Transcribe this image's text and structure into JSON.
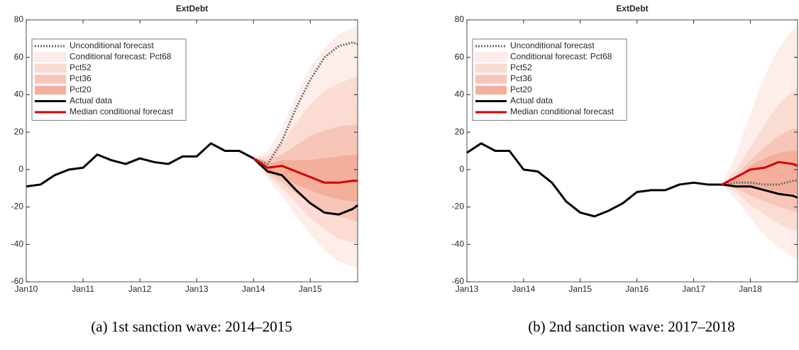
{
  "chart_data": [
    {
      "type": "line",
      "title": "ExtDebt",
      "caption": "(a) 1st sanction wave: 2014–2015",
      "x": [
        "2010-01",
        "2010-04",
        "2010-07",
        "2010-10",
        "2011-01",
        "2011-04",
        "2011-07",
        "2011-10",
        "2012-01",
        "2012-04",
        "2012-07",
        "2012-10",
        "2013-01",
        "2013-04",
        "2013-07",
        "2013-10",
        "2014-01",
        "2014-04",
        "2014-07",
        "2014-10",
        "2015-01",
        "2015-04",
        "2015-07",
        "2015-10",
        "2015-11"
      ],
      "xlim": [
        "2010-01",
        "2015-11"
      ],
      "xticks": [
        {
          "value": "2010-01",
          "label": "Jan10"
        },
        {
          "value": "2011-01",
          "label": "Jan11"
        },
        {
          "value": "2012-01",
          "label": "Jan12"
        },
        {
          "value": "2013-01",
          "label": "Jan13"
        },
        {
          "value": "2014-01",
          "label": "Jan14"
        },
        {
          "value": "2015-01",
          "label": "Jan15"
        }
      ],
      "ylim": [
        -60,
        80
      ],
      "yticks": [
        -60,
        -40,
        -20,
        0,
        20,
        40,
        60,
        80
      ],
      "legend": "upper-left",
      "series": [
        {
          "name": "Unconditional forecast",
          "color": "#6e6e6e",
          "style": "dotted",
          "values": [
            null,
            null,
            null,
            null,
            null,
            null,
            null,
            null,
            null,
            null,
            null,
            null,
            null,
            null,
            null,
            null,
            6,
            3,
            15,
            33,
            48,
            60,
            66,
            68,
            67
          ]
        },
        {
          "name": "Conditional forecast: Pct68",
          "color": "#fdeeea",
          "lower": [
            null,
            null,
            null,
            null,
            null,
            null,
            null,
            null,
            null,
            null,
            null,
            null,
            null,
            null,
            null,
            null,
            6,
            -5,
            -14,
            -25,
            -35,
            -43,
            -49,
            -52,
            -52
          ],
          "upper": [
            null,
            null,
            null,
            null,
            null,
            null,
            null,
            null,
            null,
            null,
            null,
            null,
            null,
            null,
            null,
            null,
            6,
            10,
            22,
            40,
            55,
            65,
            72,
            76,
            77
          ]
        },
        {
          "name": "Pct52",
          "color": "#fbdcd3",
          "lower": [
            null,
            null,
            null,
            null,
            null,
            null,
            null,
            null,
            null,
            null,
            null,
            null,
            null,
            null,
            null,
            null,
            6,
            -3,
            -10,
            -18,
            -26,
            -32,
            -37,
            -39,
            -40
          ],
          "upper": [
            null,
            null,
            null,
            null,
            null,
            null,
            null,
            null,
            null,
            null,
            null,
            null,
            null,
            null,
            null,
            null,
            6,
            7,
            14,
            25,
            35,
            42,
            46,
            49,
            50
          ]
        },
        {
          "name": "Pct36",
          "color": "#f8c6b9",
          "lower": [
            null,
            null,
            null,
            null,
            null,
            null,
            null,
            null,
            null,
            null,
            null,
            null,
            null,
            null,
            null,
            null,
            6,
            -2,
            -7,
            -13,
            -18,
            -22,
            -25,
            -27,
            -28
          ],
          "upper": [
            null,
            null,
            null,
            null,
            null,
            null,
            null,
            null,
            null,
            null,
            null,
            null,
            null,
            null,
            null,
            null,
            6,
            5,
            8,
            13,
            18,
            21,
            23,
            24,
            24
          ]
        },
        {
          "name": "Pct20",
          "color": "#f4ae9c",
          "lower": [
            null,
            null,
            null,
            null,
            null,
            null,
            null,
            null,
            null,
            null,
            null,
            null,
            null,
            null,
            null,
            null,
            6,
            -1,
            -4,
            -8,
            -11,
            -14,
            -16,
            -17,
            -17
          ],
          "upper": [
            null,
            null,
            null,
            null,
            null,
            null,
            null,
            null,
            null,
            null,
            null,
            null,
            null,
            null,
            null,
            null,
            6,
            3,
            5,
            5,
            5,
            6,
            7,
            8,
            8
          ]
        },
        {
          "name": "Actual data",
          "color": "#000000",
          "style": "solid",
          "values": [
            -9,
            -8,
            -3,
            0,
            1,
            8,
            5,
            3,
            6,
            4,
            3,
            7,
            7,
            14,
            10,
            10,
            6,
            -1,
            -3,
            -11,
            -18,
            -23,
            -24,
            -21,
            -19
          ]
        },
        {
          "name": "Median conditional forecast",
          "color": "#d40000",
          "style": "solid",
          "values": [
            null,
            null,
            null,
            null,
            null,
            null,
            null,
            null,
            null,
            null,
            null,
            null,
            null,
            null,
            null,
            null,
            6,
            1,
            2,
            -1,
            -4,
            -7,
            -7,
            -6,
            -6
          ]
        }
      ]
    },
    {
      "type": "line",
      "title": "ExtDebt",
      "caption": "(b) 2nd sanction wave: 2017–2018",
      "x": [
        "2013-01",
        "2013-04",
        "2013-07",
        "2013-10",
        "2014-01",
        "2014-04",
        "2014-07",
        "2014-10",
        "2015-01",
        "2015-04",
        "2015-07",
        "2015-10",
        "2016-01",
        "2016-04",
        "2016-07",
        "2016-10",
        "2017-01",
        "2017-04",
        "2017-07",
        "2017-10",
        "2018-01",
        "2018-04",
        "2018-07",
        "2018-10",
        "2018-11"
      ],
      "xlim": [
        "2013-01",
        "2018-11"
      ],
      "xticks": [
        {
          "value": "2013-01",
          "label": "Jan13"
        },
        {
          "value": "2014-01",
          "label": "Jan14"
        },
        {
          "value": "2015-01",
          "label": "Jan15"
        },
        {
          "value": "2016-01",
          "label": "Jan16"
        },
        {
          "value": "2017-01",
          "label": "Jan17"
        },
        {
          "value": "2018-01",
          "label": "Jan18"
        }
      ],
      "ylim": [
        -60,
        80
      ],
      "yticks": [
        -60,
        -40,
        -20,
        0,
        20,
        40,
        60,
        80
      ],
      "legend": "upper-left",
      "series": [
        {
          "name": "Unconditional forecast",
          "color": "#6e6e6e",
          "style": "dotted",
          "values": [
            null,
            null,
            null,
            null,
            null,
            null,
            null,
            null,
            null,
            null,
            null,
            null,
            null,
            null,
            null,
            null,
            null,
            null,
            -8,
            -7,
            -7,
            -8,
            -8,
            -6,
            -6
          ]
        },
        {
          "name": "Conditional forecast: Pct68",
          "color": "#fdeeea",
          "lower": [
            null,
            null,
            null,
            null,
            null,
            null,
            null,
            null,
            null,
            null,
            null,
            null,
            null,
            null,
            null,
            null,
            null,
            null,
            -8,
            -16,
            -26,
            -35,
            -42,
            -47,
            -48
          ],
          "upper": [
            null,
            null,
            null,
            null,
            null,
            null,
            null,
            null,
            null,
            null,
            null,
            null,
            null,
            null,
            null,
            null,
            null,
            null,
            -8,
            8,
            30,
            50,
            65,
            75,
            77
          ]
        },
        {
          "name": "Pct52",
          "color": "#fbdcd3",
          "lower": [
            null,
            null,
            null,
            null,
            null,
            null,
            null,
            null,
            null,
            null,
            null,
            null,
            null,
            null,
            null,
            null,
            null,
            null,
            -8,
            -12,
            -19,
            -24,
            -29,
            -32,
            -33
          ],
          "upper": [
            null,
            null,
            null,
            null,
            null,
            null,
            null,
            null,
            null,
            null,
            null,
            null,
            null,
            null,
            null,
            null,
            null,
            null,
            -8,
            0,
            12,
            24,
            35,
            42,
            44
          ]
        },
        {
          "name": "Pct36",
          "color": "#f8c6b9",
          "lower": [
            null,
            null,
            null,
            null,
            null,
            null,
            null,
            null,
            null,
            null,
            null,
            null,
            null,
            null,
            null,
            null,
            null,
            null,
            -8,
            -10,
            -14,
            -17,
            -20,
            -22,
            -23
          ],
          "upper": [
            null,
            null,
            null,
            null,
            null,
            null,
            null,
            null,
            null,
            null,
            null,
            null,
            null,
            null,
            null,
            null,
            null,
            null,
            -8,
            -3,
            5,
            12,
            18,
            22,
            22
          ]
        },
        {
          "name": "Pct20",
          "color": "#f4ae9c",
          "lower": [
            null,
            null,
            null,
            null,
            null,
            null,
            null,
            null,
            null,
            null,
            null,
            null,
            null,
            null,
            null,
            null,
            null,
            null,
            -8,
            -8,
            -9,
            -10,
            -12,
            -13,
            -13
          ],
          "upper": [
            null,
            null,
            null,
            null,
            null,
            null,
            null,
            null,
            null,
            null,
            null,
            null,
            null,
            null,
            null,
            null,
            null,
            null,
            -8,
            -5,
            2,
            6,
            9,
            10,
            10
          ]
        },
        {
          "name": "Actual data",
          "color": "#000000",
          "style": "solid",
          "values": [
            9,
            14,
            10,
            10,
            0,
            -1,
            -7,
            -17,
            -23,
            -25,
            -22,
            -18,
            -12,
            -11,
            -11,
            -8,
            -7,
            -8,
            -8,
            -9,
            -9,
            -11,
            -13,
            -14,
            -15
          ]
        },
        {
          "name": "Median conditional forecast",
          "color": "#d40000",
          "style": "solid",
          "values": [
            null,
            null,
            null,
            null,
            null,
            null,
            null,
            null,
            null,
            null,
            null,
            null,
            null,
            null,
            null,
            null,
            null,
            null,
            -8,
            -4,
            0,
            1,
            4,
            3,
            2
          ]
        }
      ]
    }
  ]
}
